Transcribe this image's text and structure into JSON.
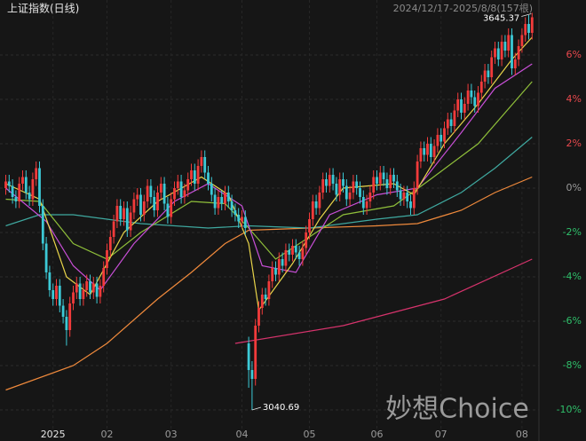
{
  "chart_data": {
    "type": "candlestick",
    "title": "上证指数(日线)",
    "subtitle": "2024/12/17-2025/8/8(157根)",
    "annotations": [
      "3645.37",
      "3040.69"
    ],
    "watermark": "妙想Choice",
    "up_color": "#f23b3b",
    "down_color": "#3cc9d6",
    "grid": true,
    "ylim": [
      -11.12,
      8.28
    ],
    "yticks": [
      {
        "value": 6,
        "label": "6%"
      },
      {
        "value": 4,
        "label": "4%"
      },
      {
        "value": 2,
        "label": "2%"
      },
      {
        "value": 0,
        "label": "0%"
      },
      {
        "value": -2,
        "label": "-2%"
      },
      {
        "value": -4,
        "label": "-4%"
      },
      {
        "value": -6,
        "label": "-6%"
      },
      {
        "value": -8,
        "label": "-8%"
      },
      {
        "value": -10,
        "label": "-10%"
      }
    ],
    "categories": [
      null,
      null,
      null,
      null,
      null,
      null,
      null,
      null,
      null,
      null,
      null,
      null,
      null,
      null,
      "2025",
      null,
      null,
      null,
      null,
      null,
      null,
      null,
      null,
      null,
      null,
      null,
      null,
      null,
      null,
      null,
      "02",
      null,
      null,
      null,
      null,
      null,
      null,
      null,
      null,
      null,
      null,
      null,
      null,
      null,
      null,
      null,
      null,
      null,
      null,
      "03",
      null,
      null,
      null,
      null,
      null,
      null,
      null,
      null,
      null,
      null,
      null,
      null,
      null,
      null,
      null,
      null,
      null,
      null,
      null,
      null,
      "04",
      null,
      null,
      null,
      null,
      null,
      null,
      null,
      null,
      null,
      null,
      null,
      null,
      null,
      null,
      null,
      null,
      null,
      null,
      null,
      "05",
      null,
      null,
      null,
      null,
      null,
      null,
      null,
      null,
      null,
      null,
      null,
      null,
      null,
      null,
      null,
      null,
      null,
      null,
      null,
      "06",
      null,
      null,
      null,
      null,
      null,
      null,
      null,
      null,
      null,
      null,
      null,
      null,
      null,
      null,
      null,
      null,
      null,
      null,
      "07",
      null,
      null,
      null,
      null,
      null,
      null,
      null,
      null,
      null,
      null,
      null,
      null,
      null,
      null,
      null,
      null,
      null,
      null,
      null,
      null,
      null,
      null,
      null,
      "08",
      null,
      null,
      null
    ],
    "open": [
      0.0,
      0.3,
      0.1,
      -0.4,
      -0.6,
      0.2,
      0.5,
      -0.2,
      -0.5,
      0.4,
      0.9,
      -0.8,
      -2.5,
      -3.8,
      -4.6,
      -5.0,
      -4.4,
      -5.3,
      -5.8,
      -6.4,
      -5.2,
      -4.7,
      -4.3,
      -5.0,
      -4.6,
      -4.2,
      -4.7,
      -4.3,
      -4.9,
      -4.4,
      -3.6,
      -2.8,
      -2.2,
      -1.5,
      -0.8,
      -1.4,
      -0.9,
      -1.9,
      -1.1,
      -0.5,
      -0.3,
      -1.2,
      -0.6,
      0.1,
      -0.4,
      -1.0,
      -0.2,
      0.2,
      -0.7,
      -1.3,
      -0.5,
      0.0,
      0.3,
      -0.4,
      -0.1,
      0.4,
      0.8,
      0.2,
      1.0,
      1.4,
      0.7,
      0.2,
      -0.3,
      -0.9,
      -0.4,
      -0.7,
      -0.2,
      -0.6,
      -1.0,
      -1.2,
      -1.5,
      -1.3,
      -7.0,
      -8.2,
      -8.6,
      -6.2,
      -5.4,
      -4.8,
      -5.0,
      -4.2,
      -3.6,
      -3.9,
      -3.2,
      -3.5,
      -2.8,
      -3.0,
      -2.6,
      -2.9,
      -3.2,
      -2.7,
      -2.0,
      -1.4,
      -0.6,
      -0.9,
      -0.2,
      0.4,
      0.1,
      0.6,
      0.2,
      -0.3,
      0.4,
      0.1,
      -0.5,
      -0.2,
      0.3,
      0.0,
      -0.4,
      -0.9,
      -0.6,
      -0.2,
      0.5,
      0.2,
      0.7,
      0.4,
      0.0,
      0.6,
      0.3,
      -0.1,
      -0.5,
      -0.2,
      -0.6,
      -0.9,
      0.0,
      1.2,
      1.8,
      1.5,
      2.0,
      1.4,
      1.9,
      2.4,
      2.1,
      2.7,
      3.1,
      2.8,
      3.5,
      4.0,
      3.4,
      3.8,
      4.4,
      4.1,
      3.7,
      4.3,
      4.8,
      5.3,
      5.0,
      5.9,
      6.3,
      5.8,
      6.6,
      6.2,
      6.9,
      5.4,
      5.8,
      6.4,
      6.9,
      7.4,
      7.0
    ],
    "high": [
      0.6,
      0.6,
      0.4,
      -0.1,
      0.5,
      0.8,
      0.8,
      0.1,
      0.7,
      1.2,
      1.2,
      -0.5,
      -2.2,
      -3.5,
      -4.3,
      -4.1,
      -4.1,
      -5.0,
      -5.5,
      -4.9,
      -4.4,
      -4.0,
      -4.0,
      -4.3,
      -3.9,
      -3.9,
      -4.0,
      -4.0,
      -4.1,
      -3.3,
      -2.5,
      -1.9,
      -1.2,
      -0.5,
      -0.5,
      -0.6,
      -0.6,
      -0.8,
      -0.2,
      0.0,
      0.0,
      -0.3,
      0.4,
      0.4,
      -0.1,
      0.1,
      0.5,
      0.5,
      -0.4,
      -0.2,
      0.3,
      0.6,
      0.6,
      0.2,
      0.7,
      1.1,
      1.1,
      1.3,
      1.7,
      1.7,
      1.0,
      0.5,
      0.0,
      -0.1,
      -0.1,
      0.1,
      0.1,
      -0.3,
      -0.7,
      -0.9,
      -1.0,
      -1.0,
      -6.7,
      -7.8,
      -5.9,
      -5.1,
      -4.5,
      -4.5,
      -3.9,
      -3.3,
      -3.3,
      -2.9,
      -2.9,
      -2.5,
      -2.5,
      -2.3,
      -2.3,
      -2.6,
      -2.4,
      -1.7,
      -1.1,
      -0.3,
      -0.3,
      0.1,
      0.7,
      0.7,
      0.9,
      0.9,
      0.5,
      0.7,
      0.7,
      0.4,
      0.1,
      0.6,
      0.6,
      0.3,
      -0.1,
      -0.3,
      0.1,
      0.8,
      0.8,
      1.0,
      1.0,
      0.7,
      0.9,
      0.9,
      0.6,
      0.2,
      0.1,
      0.1,
      -0.3,
      0.3,
      1.5,
      2.1,
      2.1,
      2.3,
      2.3,
      2.2,
      2.7,
      2.7,
      3.0,
      3.4,
      3.4,
      3.8,
      4.3,
      4.3,
      4.1,
      4.7,
      4.7,
      4.4,
      4.6,
      5.1,
      5.6,
      5.6,
      6.2,
      6.6,
      6.6,
      6.9,
      6.9,
      7.2,
      7.2,
      6.1,
      6.7,
      7.2,
      7.7,
      7.8,
      7.9
    ],
    "low": [
      -0.3,
      -0.2,
      -0.7,
      -0.9,
      -0.9,
      -0.1,
      -0.5,
      -0.8,
      -0.8,
      0.1,
      -1.1,
      -2.8,
      -4.1,
      -4.9,
      -5.3,
      -5.3,
      -5.6,
      -6.1,
      -7.1,
      -6.7,
      -5.5,
      -5.0,
      -5.3,
      -5.3,
      -4.9,
      -5.0,
      -5.0,
      -5.2,
      -5.2,
      -4.7,
      -3.9,
      -3.1,
      -2.5,
      -1.8,
      -1.7,
      -1.7,
      -2.2,
      -2.2,
      -1.4,
      -0.8,
      -1.5,
      -1.5,
      -0.9,
      -0.7,
      -1.3,
      -1.3,
      -0.5,
      -1.0,
      -1.6,
      -1.6,
      -0.8,
      -0.3,
      -0.7,
      -0.7,
      -0.4,
      0.1,
      -0.1,
      -0.1,
      0.7,
      0.4,
      -0.1,
      -0.6,
      -1.2,
      -1.2,
      -1.0,
      -1.0,
      -0.9,
      -1.3,
      -1.5,
      -1.8,
      -1.8,
      -2.1,
      -9.0,
      -10.0,
      -8.9,
      -6.5,
      -5.7,
      -5.3,
      -5.3,
      -4.5,
      -4.2,
      -4.2,
      -3.8,
      -3.8,
      -3.3,
      -3.3,
      -3.2,
      -3.5,
      -3.5,
      -3.0,
      -2.3,
      -1.7,
      -1.2,
      -1.2,
      -0.5,
      -0.2,
      -0.2,
      -0.1,
      -0.6,
      -0.6,
      -0.2,
      -0.8,
      -0.8,
      -0.5,
      -0.3,
      -0.7,
      -1.2,
      -1.2,
      -0.9,
      -0.5,
      -0.1,
      -0.1,
      0.1,
      -0.3,
      -0.3,
      0.0,
      -0.4,
      -0.8,
      -0.8,
      -0.9,
      -1.2,
      -1.2,
      -0.3,
      0.9,
      1.2,
      1.2,
      1.1,
      1.1,
      1.6,
      1.8,
      1.8,
      2.4,
      2.5,
      2.5,
      3.2,
      3.1,
      3.1,
      3.5,
      3.8,
      3.4,
      3.4,
      4.0,
      4.5,
      4.7,
      4.7,
      5.6,
      5.5,
      5.5,
      5.9,
      5.9,
      5.1,
      5.1,
      5.5,
      6.1,
      6.6,
      6.7,
      6.7
    ],
    "close": [
      0.3,
      0.1,
      -0.4,
      -0.6,
      0.2,
      0.5,
      -0.2,
      -0.5,
      0.4,
      0.9,
      -0.8,
      -2.5,
      -3.8,
      -4.6,
      -5.0,
      -4.4,
      -5.3,
      -5.8,
      -6.4,
      -5.2,
      -4.7,
      -4.3,
      -5.0,
      -4.6,
      -4.2,
      -4.7,
      -4.3,
      -4.9,
      -4.4,
      -3.6,
      -2.8,
      -2.2,
      -1.5,
      -0.8,
      -1.4,
      -0.9,
      -1.9,
      -1.1,
      -0.5,
      -0.3,
      -1.2,
      -0.6,
      0.1,
      -0.4,
      -1.0,
      -0.2,
      0.2,
      -0.7,
      -1.3,
      -0.5,
      0.0,
      0.3,
      -0.4,
      -0.1,
      0.4,
      0.8,
      0.2,
      1.0,
      1.4,
      0.7,
      0.2,
      -0.3,
      -0.9,
      -0.4,
      -0.7,
      -0.2,
      -0.6,
      -1.0,
      -1.2,
      -1.5,
      -1.3,
      -1.8,
      -8.2,
      -8.6,
      -6.2,
      -5.4,
      -4.8,
      -5.0,
      -4.2,
      -3.6,
      -3.9,
      -3.2,
      -3.5,
      -2.8,
      -3.0,
      -2.6,
      -2.9,
      -3.2,
      -2.7,
      -2.0,
      -1.4,
      -0.6,
      -0.9,
      -0.2,
      0.4,
      0.1,
      0.6,
      0.2,
      -0.3,
      0.4,
      0.1,
      -0.5,
      -0.2,
      0.3,
      0.0,
      -0.4,
      -0.9,
      -0.6,
      -0.2,
      0.5,
      0.2,
      0.7,
      0.4,
      0.0,
      0.6,
      0.3,
      -0.1,
      -0.5,
      -0.2,
      -0.6,
      -0.9,
      0.0,
      1.2,
      1.8,
      1.5,
      2.0,
      1.4,
      1.9,
      2.4,
      2.1,
      2.7,
      3.1,
      2.8,
      3.5,
      4.0,
      3.4,
      3.8,
      4.4,
      4.1,
      3.7,
      4.3,
      4.8,
      5.3,
      5.0,
      5.9,
      6.3,
      5.8,
      6.6,
      6.2,
      6.9,
      5.4,
      5.8,
      6.4,
      6.9,
      7.4,
      7.0,
      7.7
    ],
    "lines": [
      {
        "color": "#f08a3c",
        "x": [
          0,
          20,
          30,
          45,
          55,
          65,
          72,
          90,
          110,
          122,
          135,
          145,
          156
        ],
        "values": [
          -9.1,
          -8.0,
          -7.0,
          -5.0,
          -3.8,
          -2.5,
          -1.9,
          -1.8,
          -1.7,
          -1.6,
          -1.0,
          -0.2,
          0.5
        ]
      },
      {
        "color": "#3fa9a0",
        "x": [
          0,
          10,
          20,
          40,
          60,
          72,
          90,
          110,
          122,
          135,
          145,
          156
        ],
        "values": [
          -1.7,
          -1.2,
          -1.2,
          -1.6,
          -1.8,
          -1.7,
          -1.8,
          -1.4,
          -1.2,
          -0.2,
          0.9,
          2.3
        ]
      },
      {
        "color": "#8fbf3a",
        "x": [
          0,
          10,
          20,
          30,
          40,
          55,
          65,
          72,
          80,
          90,
          100,
          115,
          125,
          140,
          156
        ],
        "values": [
          -0.5,
          -0.6,
          -2.5,
          -3.2,
          -2.0,
          -0.6,
          -0.7,
          -1.8,
          -3.2,
          -2.2,
          -1.2,
          -0.8,
          0.3,
          2.0,
          4.8
        ]
      },
      {
        "color": "#d6336c",
        "x": [
          68,
          100,
          130,
          156
        ],
        "values": [
          -7.0,
          -6.2,
          -5.0,
          -3.2
        ]
      },
      {
        "color": "#c94fd8",
        "x": [
          0,
          12,
          20,
          28,
          38,
          50,
          60,
          70,
          76,
          86,
          96,
          110,
          122,
          135,
          145,
          156
        ],
        "values": [
          0.0,
          -1.5,
          -3.5,
          -4.6,
          -2.5,
          -0.6,
          0.2,
          -0.8,
          -3.5,
          -3.8,
          -1.2,
          -0.3,
          0.0,
          2.5,
          4.5,
          5.6
        ]
      },
      {
        "color": "#e8d44a",
        "x": [
          0,
          10,
          18,
          25,
          35,
          45,
          58,
          66,
          72,
          75,
          85,
          93,
          100,
          115,
          121,
          130,
          140,
          150,
          156
        ],
        "values": [
          0.2,
          -0.5,
          -4.0,
          -4.8,
          -2.0,
          -0.6,
          0.5,
          -0.3,
          -2.5,
          -5.5,
          -3.4,
          -1.4,
          0.0,
          0.2,
          -0.3,
          2.0,
          3.8,
          5.8,
          6.8
        ]
      }
    ]
  }
}
